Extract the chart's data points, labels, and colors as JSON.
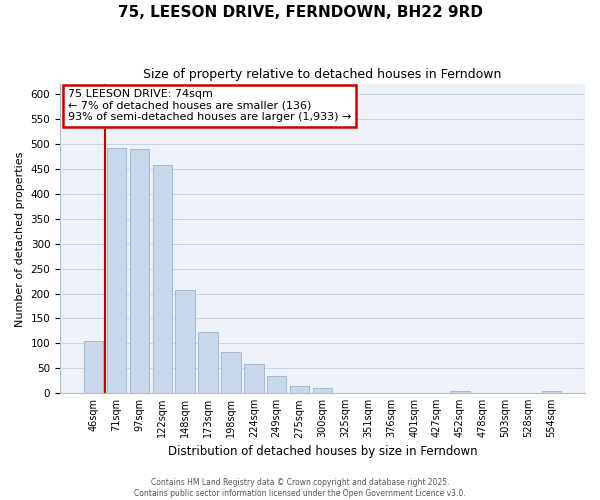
{
  "title": "75, LEESON DRIVE, FERNDOWN, BH22 9RD",
  "subtitle": "Size of property relative to detached houses in Ferndown",
  "xlabel": "Distribution of detached houses by size in Ferndown",
  "ylabel": "Number of detached properties",
  "bar_labels": [
    "46sqm",
    "71sqm",
    "97sqm",
    "122sqm",
    "148sqm",
    "173sqm",
    "198sqm",
    "224sqm",
    "249sqm",
    "275sqm",
    "300sqm",
    "325sqm",
    "351sqm",
    "376sqm",
    "401sqm",
    "427sqm",
    "452sqm",
    "478sqm",
    "503sqm",
    "528sqm",
    "554sqm"
  ],
  "bar_values": [
    105,
    492,
    490,
    458,
    208,
    123,
    83,
    58,
    35,
    15,
    10,
    0,
    0,
    0,
    0,
    0,
    5,
    0,
    0,
    0,
    5
  ],
  "bar_color": "#c8d8ea",
  "bar_edge_color": "#98b4cc",
  "ylim": [
    0,
    620
  ],
  "yticks": [
    0,
    50,
    100,
    150,
    200,
    250,
    300,
    350,
    400,
    450,
    500,
    550,
    600
  ],
  "vline_x": 0.5,
  "vline_color": "#cc0000",
  "annotation_title": "75 LEESON DRIVE: 74sqm",
  "annotation_line1": "← 7% of detached houses are smaller (136)",
  "annotation_line2": "93% of semi-detached houses are larger (1,933) →",
  "footer1": "Contains HM Land Registry data © Crown copyright and database right 2025.",
  "footer2": "Contains public sector information licensed under the Open Government Licence v3.0.",
  "grid_color": "#c8d4e0",
  "background_color": "#ffffff",
  "plot_bg_color": "#eef2f8"
}
